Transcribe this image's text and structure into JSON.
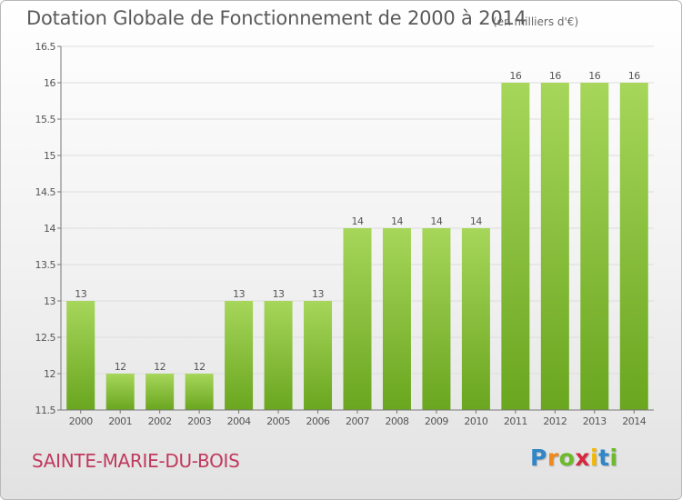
{
  "title": "Dotation Globale de Fonctionnement de 2000 à 2014",
  "subtitle": "(en milliers d'€)",
  "commune": "SAINTE-MARIE-DU-BOIS",
  "logo": {
    "letters": [
      "P",
      "r",
      "o",
      "x",
      "i",
      "t",
      "i"
    ],
    "colors": [
      "#2f86c8",
      "#f08a1c",
      "#6cbb2a",
      "#d8263c",
      "#f2b705",
      "#2f86c8",
      "#6cbb2a"
    ]
  },
  "colors": {
    "bar_light": "#a6d65a",
    "bar_dark": "#6aa61f",
    "axis": "#777777",
    "grid": "#dddddd",
    "label": "#555555",
    "commune": "#c0395e"
  },
  "chart_data": {
    "type": "bar",
    "categories": [
      "2000",
      "2001",
      "2002",
      "2003",
      "2004",
      "2005",
      "2006",
      "2007",
      "2008",
      "2009",
      "2010",
      "2011",
      "2012",
      "2013",
      "2014"
    ],
    "values": [
      13,
      12,
      12,
      12,
      13,
      13,
      13,
      14,
      14,
      14,
      14,
      16,
      16,
      16,
      16
    ],
    "data_labels": [
      "13",
      "12",
      "12",
      "12",
      "13",
      "13",
      "13",
      "14",
      "14",
      "14",
      "14",
      "16",
      "16",
      "16",
      "16"
    ],
    "yticks": [
      "11.5",
      "12",
      "12.5",
      "13",
      "13.5",
      "14",
      "14.5",
      "15",
      "15.5",
      "16",
      "16.5"
    ],
    "ylim": [
      11.5,
      16.5
    ],
    "grid": true,
    "legend": "none"
  }
}
